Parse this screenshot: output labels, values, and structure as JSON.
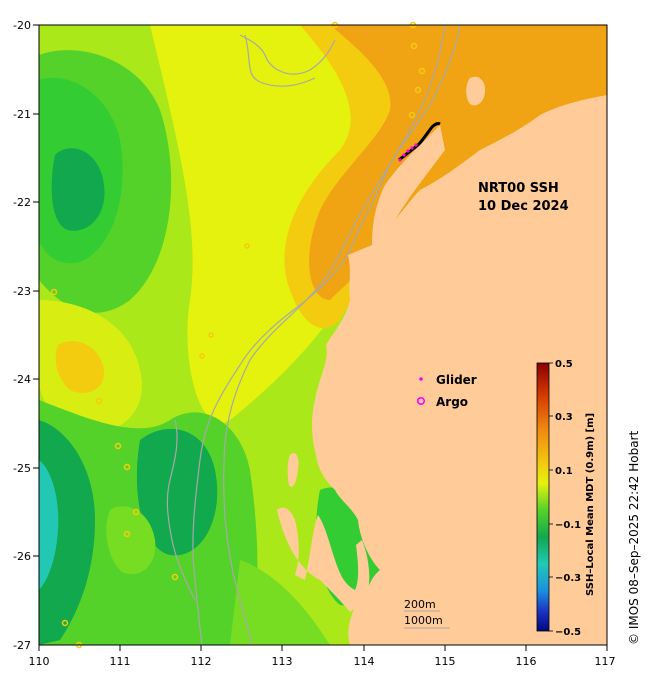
{
  "map": {
    "title_line1": "NRT00 SSH",
    "title_line2": "10 Dec 2024",
    "lon_ticks": [
      "110",
      "111",
      "112",
      "113",
      "114",
      "115",
      "116",
      "117"
    ],
    "lat_ticks": [
      "-20",
      "-21",
      "-22",
      "-23",
      "-24",
      "-25",
      "-26",
      "-27"
    ],
    "legend": {
      "glider_label": "Glider",
      "argo_label": "Argo",
      "glider_color": "#ff00ff",
      "argo_color": "#ff00ff"
    },
    "contour_labels": [
      "200m",
      "1000m"
    ],
    "colorbar": {
      "title": "SSH–Local Mean MDT (0.9m) [m]",
      "tick_labels": [
        "0.5",
        "0.3",
        "0.1",
        "−0.1",
        "−0.3",
        "−0.5"
      ]
    },
    "credit": "© IMOS 08–Sep–2025 22:42 Hobart",
    "colors": {
      "land": "#ffcc99",
      "dark_green": "#11a84e",
      "green": "#33cc33",
      "light_green": "#77dd22",
      "yellow_green": "#aae81a",
      "yellow": "#e4f20e",
      "gold": "#f3cc10",
      "orange": "#f0a414",
      "dark_orange": "#ed9810",
      "cyan": "#22c8b4",
      "bathymetry": "#a8a8a8"
    }
  }
}
